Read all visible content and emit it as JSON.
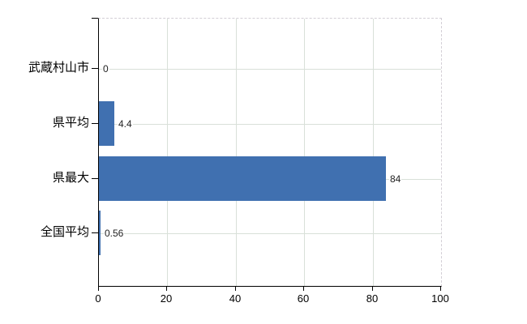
{
  "chart_data": {
    "type": "bar",
    "orientation": "horizontal",
    "title": "",
    "xlabel": "",
    "ylabel": "",
    "categories": [
      "武蔵村山市",
      "県平均",
      "県最大",
      "全国平均"
    ],
    "values": [
      0,
      4.4,
      84,
      0.56
    ],
    "value_labels": [
      "0",
      "4.4",
      "84",
      "0.56"
    ],
    "xlim": [
      0,
      100
    ],
    "x_ticks": [
      0,
      20,
      40,
      60,
      80,
      100
    ],
    "x_tick_labels": [
      "0",
      "20",
      "40",
      "60",
      "80",
      "100"
    ],
    "grid": true,
    "legend": false,
    "bar_color": "#4070b0",
    "gridline_color": "#d9e0d9",
    "axis_color": "#000000",
    "background_color": "#ffffff"
  }
}
